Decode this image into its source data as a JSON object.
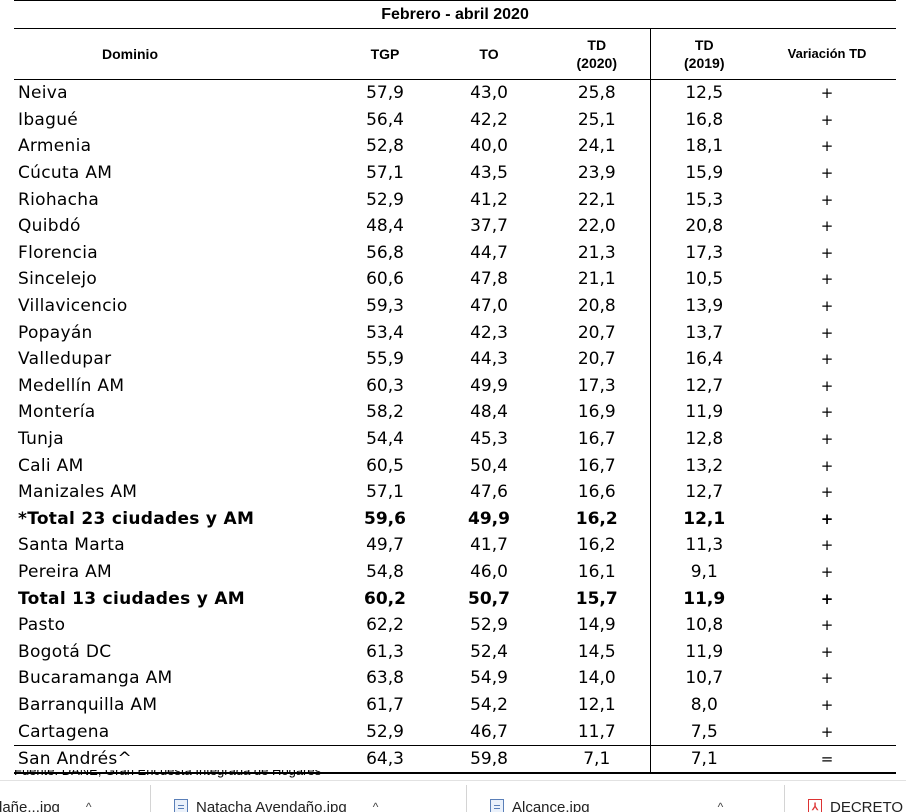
{
  "table": {
    "period": "Febrero - abril 2020",
    "headers": {
      "dominio": "Dominio",
      "tgp": "TGP",
      "to": "TO",
      "td2020_a": "TD",
      "td2020_b": "(2020)",
      "td2019_a": "TD",
      "td2019_b": "(2019)",
      "variacion": "Variación TD"
    },
    "rows": [
      {
        "dominio": "Neiva",
        "tgp": "57,9",
        "to": "43,0",
        "td2020": "25,8",
        "td2019": "12,5",
        "var": "+"
      },
      {
        "dominio": "Ibagué",
        "tgp": "56,4",
        "to": "42,2",
        "td2020": "25,1",
        "td2019": "16,8",
        "var": "+"
      },
      {
        "dominio": "Armenia",
        "tgp": "52,8",
        "to": "40,0",
        "td2020": "24,1",
        "td2019": "18,1",
        "var": "+"
      },
      {
        "dominio": "Cúcuta AM",
        "tgp": "57,1",
        "to": "43,5",
        "td2020": "23,9",
        "td2019": "15,9",
        "var": "+"
      },
      {
        "dominio": "Riohacha",
        "tgp": "52,9",
        "to": "41,2",
        "td2020": "22,1",
        "td2019": "15,3",
        "var": "+"
      },
      {
        "dominio": "Quibdó",
        "tgp": "48,4",
        "to": "37,7",
        "td2020": "22,0",
        "td2019": "20,8",
        "var": "+"
      },
      {
        "dominio": "Florencia",
        "tgp": "56,8",
        "to": "44,7",
        "td2020": "21,3",
        "td2019": "17,3",
        "var": "+"
      },
      {
        "dominio": "Sincelejo",
        "tgp": "60,6",
        "to": "47,8",
        "td2020": "21,1",
        "td2019": "10,5",
        "var": "+"
      },
      {
        "dominio": "Villavicencio",
        "tgp": "59,3",
        "to": "47,0",
        "td2020": "20,8",
        "td2019": "13,9",
        "var": "+"
      },
      {
        "dominio": "Popayán",
        "tgp": "53,4",
        "to": "42,3",
        "td2020": "20,7",
        "td2019": "13,7",
        "var": "+"
      },
      {
        "dominio": "Valledupar",
        "tgp": "55,9",
        "to": "44,3",
        "td2020": "20,7",
        "td2019": "16,4",
        "var": "+"
      },
      {
        "dominio": "Medellín AM",
        "tgp": "60,3",
        "to": "49,9",
        "td2020": "17,3",
        "td2019": "12,7",
        "var": "+"
      },
      {
        "dominio": "Montería",
        "tgp": "58,2",
        "to": "48,4",
        "td2020": "16,9",
        "td2019": "11,9",
        "var": "+"
      },
      {
        "dominio": "Tunja",
        "tgp": "54,4",
        "to": "45,3",
        "td2020": "16,7",
        "td2019": "12,8",
        "var": "+"
      },
      {
        "dominio": "Cali AM",
        "tgp": "60,5",
        "to": "50,4",
        "td2020": "16,7",
        "td2019": "13,2",
        "var": "+"
      },
      {
        "dominio": "Manizales AM",
        "tgp": "57,1",
        "to": "47,6",
        "td2020": "16,6",
        "td2019": "12,7",
        "var": "+"
      },
      {
        "dominio": "*Total 23 ciudades y AM",
        "tgp": "59,6",
        "to": "49,9",
        "td2020": "16,2",
        "td2019": "12,1",
        "var": "+",
        "bold": true
      },
      {
        "dominio": "Santa Marta",
        "tgp": "49,7",
        "to": "41,7",
        "td2020": "16,2",
        "td2019": "11,3",
        "var": "+"
      },
      {
        "dominio": "Pereira AM",
        "tgp": "54,8",
        "to": "46,0",
        "td2020": "16,1",
        "td2019": "9,1",
        "var": "+"
      },
      {
        "dominio": "Total 13 ciudades y AM",
        "tgp": "60,2",
        "to": "50,7",
        "td2020": "15,7",
        "td2019": "11,9",
        "var": "+",
        "bold": true
      },
      {
        "dominio": "Pasto",
        "tgp": "62,2",
        "to": "52,9",
        "td2020": "14,9",
        "td2019": "10,8",
        "var": "+"
      },
      {
        "dominio": "Bogotá DC",
        "tgp": "61,3",
        "to": "52,4",
        "td2020": "14,5",
        "td2019": "11,9",
        "var": "+"
      },
      {
        "dominio": "Bucaramanga AM",
        "tgp": "63,8",
        "to": "54,9",
        "td2020": "14,0",
        "td2019": "10,7",
        "var": "+"
      },
      {
        "dominio": "Barranquilla AM",
        "tgp": "61,7",
        "to": "54,2",
        "td2020": "12,1",
        "td2019": "8,0",
        "var": "+"
      },
      {
        "dominio": "Cartagena",
        "tgp": "52,9",
        "to": "46,7",
        "td2020": "11,7",
        "td2019": "7,5",
        "var": "+"
      },
      {
        "dominio": "San Andrés^",
        "tgp": "64,3",
        "to": "59,8",
        "td2020": "7,1",
        "td2019": "7,1",
        "var": "=",
        "last": true
      }
    ],
    "footnote_cut": "Fuente: DANE, Gran Encuesta Integrada de Hogares"
  },
  "taskbar": {
    "items": [
      {
        "label": "dañe...jpg",
        "icon": "image-file-icon"
      },
      {
        "label": "Natacha Avendaño.jpg",
        "icon": "image-file-icon"
      },
      {
        "label": "Alcance.jpg",
        "icon": "image-file-icon"
      },
      {
        "label": "DECRETO",
        "icon": "pdf-file-icon"
      }
    ],
    "chevron": "^"
  }
}
